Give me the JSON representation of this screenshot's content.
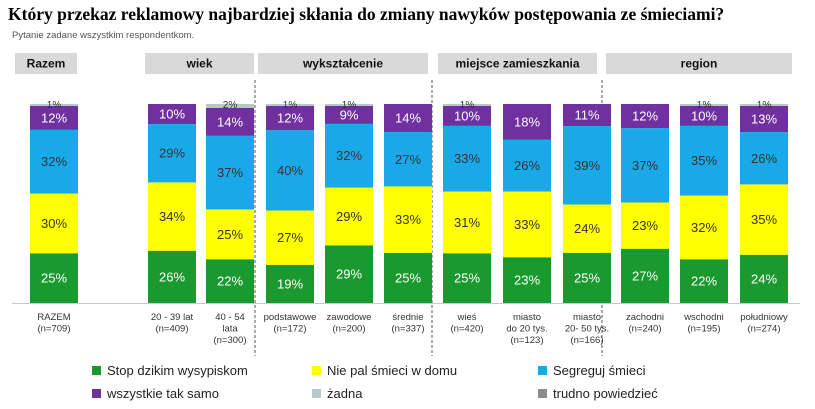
{
  "title": "Który przekaz reklamowy najbardziej skłania do zmiany nawyków postępowania ze śmieciami?",
  "subtitle": "Pytanie zadane wszystkim respondentkom.",
  "chart_data": {
    "type": "bar",
    "stacked": true,
    "normalized_percent": true,
    "groups": [
      {
        "label": "Razem",
        "columns": [
          0
        ]
      },
      {
        "label": "wiek",
        "columns": [
          1,
          2
        ]
      },
      {
        "label": "wykształcenie",
        "columns": [
          3,
          4,
          5
        ]
      },
      {
        "label": "miejsce zamieszkania",
        "columns": [
          6,
          7,
          8
        ]
      },
      {
        "label": "region",
        "columns": [
          9,
          10,
          11
        ]
      }
    ],
    "categories": [
      "RAZEM\n(n=709)",
      "20 - 39 lat\n(n=409)",
      "40 - 54\nlata\n(n=300)",
      "podstawowe\n(n=172)",
      "zawodowe\n(n=200)",
      "średnie\n(n=337)",
      "wieś\n(n=420)",
      "miasto\ndo 20 tys.\n(n=123)",
      "miasto\n20- 50 tys.\n(n=166)",
      "zachodni\n(n=240)",
      "wschodni\n(n=195)",
      "południowy\n(n=274)"
    ],
    "series": [
      {
        "name": "Stop dzikim wysypiskom",
        "color": "#1a9a2e",
        "text_color": "#ffffff",
        "values": [
          25,
          26,
          22,
          19,
          29,
          25,
          25,
          23,
          25,
          27,
          22,
          24
        ]
      },
      {
        "name": "Nie pal śmieci w domu",
        "color": "#ffff00",
        "text_color": "#333333",
        "values": [
          30,
          34,
          25,
          27,
          29,
          33,
          31,
          33,
          24,
          23,
          32,
          35
        ]
      },
      {
        "name": "Segreguj śmieci",
        "color": "#1aa9e8",
        "text_color": "#333333",
        "values": [
          32,
          29,
          37,
          40,
          32,
          27,
          33,
          26,
          39,
          37,
          35,
          26
        ]
      },
      {
        "name": "wszystkie tak samo",
        "color": "#7030a0",
        "text_color": "#ffffff",
        "values": [
          12,
          10,
          14,
          12,
          9,
          14,
          10,
          18,
          11,
          12,
          10,
          13
        ]
      },
      {
        "name": "żadna",
        "color": "#b8c8c8",
        "text_color": "#333333",
        "values": [
          1,
          0,
          2,
          1,
          1,
          0,
          1,
          0,
          0,
          0,
          1,
          1
        ]
      },
      {
        "name": "trudno powiedzieć",
        "color": "#8c8c8c",
        "text_color": "#333333",
        "values": [
          0,
          0,
          0,
          0,
          0,
          0,
          0,
          0,
          0,
          0,
          0,
          0
        ]
      }
    ],
    "top_labels": [
      "1%",
      "",
      "2%",
      "1%",
      "1%",
      "",
      "1%",
      "",
      "",
      "",
      "1%",
      "1%"
    ],
    "value_suffix": "%",
    "legend_position": "bottom"
  }
}
